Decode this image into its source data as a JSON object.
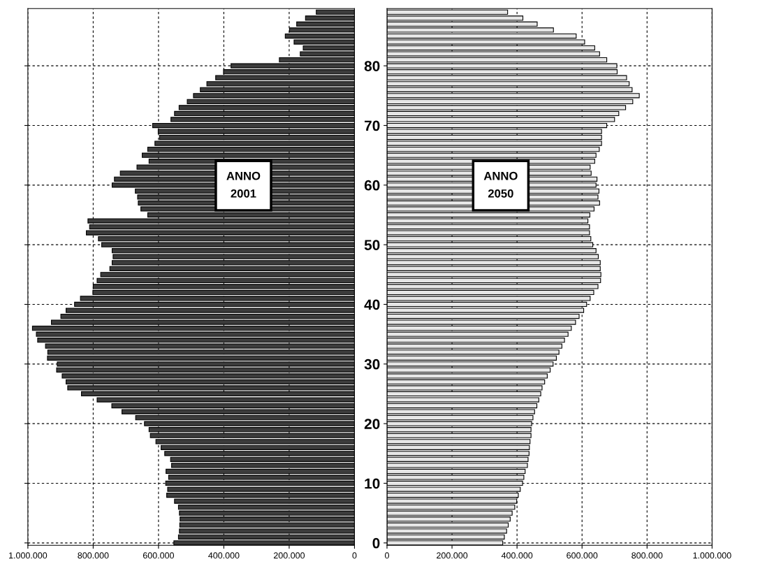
{
  "chart_data": [
    {
      "type": "bar",
      "orientation": "horizontal",
      "annotations": [
        "ANNO\n2001"
      ],
      "grid": true,
      "tick_labels": "x",
      "x": [
        0,
        1,
        2,
        3,
        4,
        5,
        6,
        7,
        8,
        9,
        10,
        11,
        12,
        13,
        14,
        15,
        16,
        17,
        18,
        19,
        20,
        21,
        22,
        23,
        24,
        25,
        26,
        27,
        28,
        29,
        30,
        31,
        32,
        33,
        34,
        35,
        36,
        37,
        38,
        39,
        40,
        41,
        42,
        43,
        44,
        45,
        46,
        47,
        48,
        49,
        50,
        51,
        52,
        53,
        54,
        55,
        56,
        57,
        58,
        59,
        60,
        61,
        62,
        63,
        64,
        65,
        66,
        67,
        68,
        69,
        70,
        71,
        72,
        73,
        74,
        75,
        76,
        77,
        78,
        79,
        80,
        81,
        82,
        83,
        84,
        85,
        86,
        87,
        88,
        89
      ],
      "series": [
        {
          "color": "#3c3c3c",
          "values": [
            553000,
            539000,
            536000,
            535000,
            534000,
            536000,
            539000,
            551000,
            575000,
            572000,
            578000,
            569000,
            577000,
            560000,
            563000,
            581000,
            592000,
            608000,
            625000,
            629000,
            643000,
            670000,
            712000,
            743000,
            788000,
            836000,
            878000,
            883000,
            895000,
            912000,
            910000,
            940000,
            939000,
            946000,
            970000,
            974000,
            986000,
            928000,
            899000,
            883000,
            857000,
            839000,
            801000,
            800000,
            788000,
            777000,
            749000,
            742000,
            739000,
            742000,
            774000,
            784000,
            821000,
            811000,
            816000,
            633000,
            654000,
            662000,
            664000,
            671000,
            742000,
            735000,
            717000,
            666000,
            629000,
            650000,
            633000,
            611000,
            597000,
            601000,
            618000,
            562000,
            551000,
            537000,
            512000,
            493000,
            472000,
            452000,
            425000,
            401000,
            378000,
            230000,
            166000,
            157000,
            185000,
            212000,
            199000,
            177000,
            150000,
            117000
          ]
        }
      ],
      "xlim": [
        1000000,
        0
      ],
      "xticks": [
        {
          "value": 1000000,
          "label": "1.000.000"
        },
        {
          "value": 800000,
          "label": "800.000"
        },
        {
          "value": 600000,
          "label": "600.000"
        },
        {
          "value": 400000,
          "label": "400.000"
        },
        {
          "value": 200000,
          "label": "200.000"
        },
        0
      ],
      "ylim": [
        -0.4,
        89.6
      ],
      "yticks": [
        0,
        10,
        20,
        30,
        40,
        50,
        60,
        70,
        80
      ]
    },
    {
      "type": "bar",
      "orientation": "horizontal",
      "annotations": [
        "ANNO\n2050"
      ],
      "grid": true,
      "x": [
        0,
        1,
        2,
        3,
        4,
        5,
        6,
        7,
        8,
        9,
        10,
        11,
        12,
        13,
        14,
        15,
        16,
        17,
        18,
        19,
        20,
        21,
        22,
        23,
        24,
        25,
        26,
        27,
        28,
        29,
        30,
        31,
        32,
        33,
        34,
        35,
        36,
        37,
        38,
        39,
        40,
        41,
        42,
        43,
        44,
        45,
        46,
        47,
        48,
        49,
        50,
        51,
        52,
        53,
        54,
        55,
        56,
        57,
        58,
        59,
        60,
        61,
        62,
        63,
        64,
        65,
        66,
        67,
        68,
        69,
        70,
        71,
        72,
        73,
        74,
        75,
        76,
        77,
        78,
        79,
        80,
        81,
        82,
        83,
        84,
        85,
        86,
        87,
        88,
        89
      ],
      "series": [
        {
          "color": "#e6e6e6",
          "values": [
            356000,
            361000,
            368000,
            373000,
            379000,
            385000,
            393000,
            399000,
            404000,
            410000,
            417000,
            421000,
            425000,
            432000,
            434000,
            437000,
            438000,
            440000,
            443000,
            443000,
            445000,
            449000,
            454000,
            461000,
            467000,
            473000,
            477000,
            485000,
            493000,
            502000,
            511000,
            521000,
            529000,
            538000,
            546000,
            557000,
            567000,
            580000,
            591000,
            605000,
            614000,
            625000,
            636000,
            649000,
            657000,
            658000,
            656000,
            656000,
            650000,
            643000,
            633000,
            627000,
            623000,
            623000,
            618000,
            624000,
            637000,
            654000,
            649000,
            652000,
            643000,
            646000,
            628000,
            625000,
            639000,
            643000,
            653000,
            660000,
            660000,
            660000,
            676000,
            700000,
            713000,
            734000,
            756000,
            776000,
            754000,
            745000,
            737000,
            708000,
            707000,
            676000,
            654000,
            639000,
            608000,
            582000,
            512000,
            462000,
            418000,
            371000
          ]
        }
      ],
      "xlim": [
        0,
        1000000
      ],
      "xticks": [
        0,
        {
          "value": 200000,
          "label": "200.000"
        },
        {
          "value": 400000,
          "label": "400.000"
        },
        {
          "value": 600000,
          "label": "600.000"
        },
        {
          "value": 800000,
          "label": "800.000"
        },
        {
          "value": 1000000,
          "label": "1.000.000"
        }
      ],
      "ylim": [
        -0.4,
        89.6
      ],
      "yticks": [
        0,
        10,
        20,
        30,
        40,
        50,
        60,
        70,
        80
      ]
    }
  ]
}
